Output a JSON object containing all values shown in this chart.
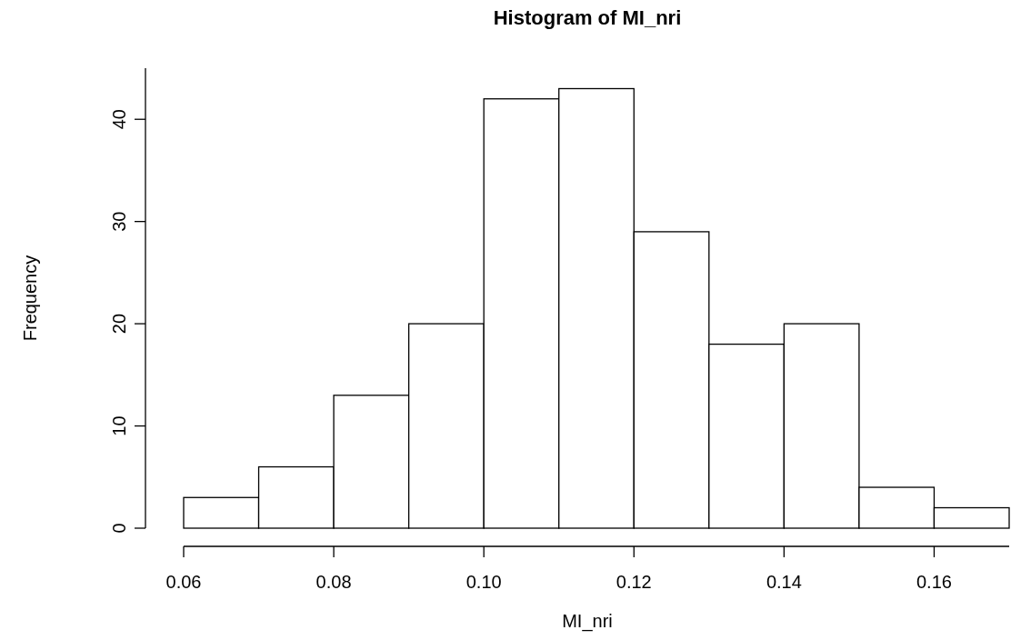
{
  "chart_data": {
    "type": "histogram",
    "title": "Histogram of MI_nri",
    "xlabel": "MI_nri",
    "ylabel": "Frequency",
    "bins": [
      0.06,
      0.07,
      0.08,
      0.09,
      0.1,
      0.11,
      0.12,
      0.13,
      0.14,
      0.15,
      0.16,
      0.17
    ],
    "values": [
      3,
      6,
      13,
      20,
      42,
      43,
      29,
      18,
      20,
      4,
      2
    ],
    "color": "#ffffff",
    "xlim": [
      0.06,
      0.17
    ],
    "xticks": [
      {
        "value": 0.06,
        "label": "0.06"
      },
      {
        "value": 0.08,
        "label": "0.08"
      },
      {
        "value": 0.1,
        "label": "0.10"
      },
      {
        "value": 0.12,
        "label": "0.12"
      },
      {
        "value": 0.14,
        "label": "0.14"
      },
      {
        "value": 0.16,
        "label": "0.16"
      }
    ],
    "ylim": [
      0,
      45
    ],
    "yticks": [
      0,
      10,
      20,
      30,
      40
    ],
    "grid": false
  }
}
